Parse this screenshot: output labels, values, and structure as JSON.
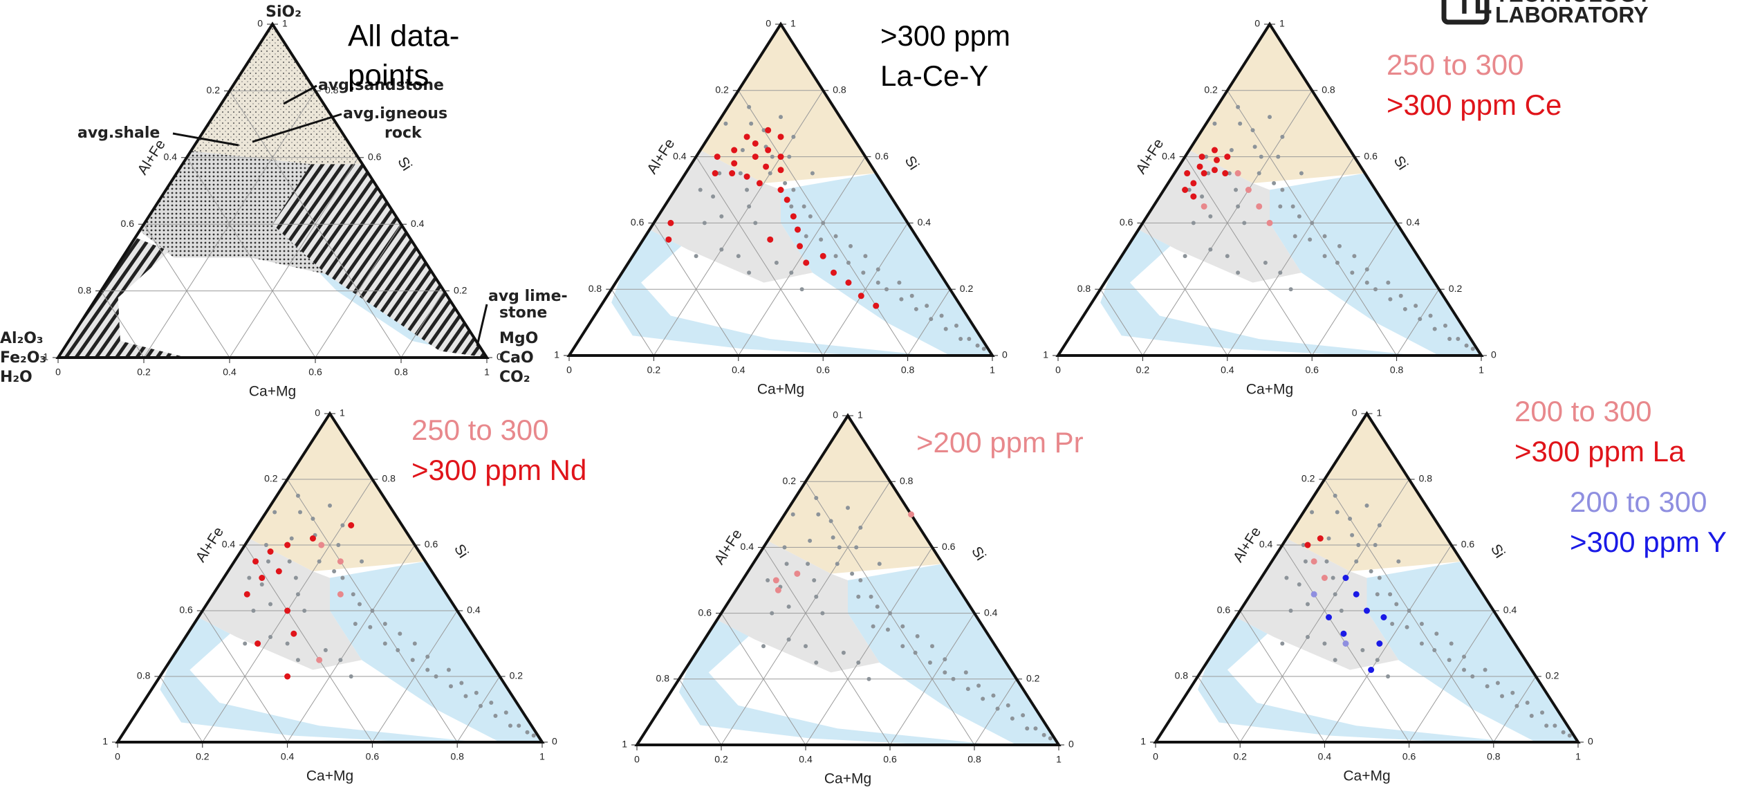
{
  "axes": {
    "ticks": [
      0,
      0.2,
      0.4,
      0.6,
      0.8,
      1
    ],
    "bottom_label": "Ca+Mg",
    "left_label": "Al+Fe",
    "right_label": "Si"
  },
  "background_points": {
    "color": "#8c9399",
    "ca_mg": [
      0.05,
      0.08,
      0.12,
      0.1,
      0.15,
      0.18,
      0.05,
      0.08,
      0.13,
      0.2,
      0.22,
      0.25,
      0.17,
      0.1,
      0.06,
      0.28,
      0.3,
      0.2,
      0.15,
      0.24,
      0.12,
      0.3,
      0.02,
      0.14,
      0.2,
      0.33,
      0.36,
      0.4,
      0.38,
      0.42,
      0.45,
      0.48,
      0.5,
      0.52,
      0.55,
      0.57,
      0.6,
      0.62,
      0.65,
      0.67,
      0.7,
      0.72,
      0.75,
      0.77,
      0.8,
      0.82,
      0.85,
      0.87,
      0.9,
      0.92,
      0.95,
      0.97,
      0.25,
      0.3,
      0.2,
      0.35,
      0.15,
      0.4,
      0.45
    ],
    "si": [
      0.75,
      0.7,
      0.68,
      0.62,
      0.63,
      0.6,
      0.6,
      0.55,
      0.55,
      0.55,
      0.6,
      0.52,
      0.5,
      0.48,
      0.5,
      0.5,
      0.45,
      0.45,
      0.42,
      0.4,
      0.4,
      0.55,
      0.7,
      0.72,
      0.66,
      0.45,
      0.42,
      0.4,
      0.36,
      0.35,
      0.36,
      0.3,
      0.33,
      0.28,
      0.3,
      0.25,
      0.26,
      0.22,
      0.2,
      0.22,
      0.17,
      0.18,
      0.14,
      0.15,
      0.11,
      0.12,
      0.08,
      0.09,
      0.05,
      0.05,
      0.03,
      0.02,
      0.3,
      0.25,
      0.32,
      0.28,
      0.3,
      0.25,
      0.2
    ]
  },
  "reference_diagram": {
    "caption_lines": [
      "All data-",
      "points"
    ],
    "apex": "SiO₂",
    "sandstone": "avg.sandstone",
    "igneous_lines": [
      "avg.igneous",
      "rock"
    ],
    "shale": "avg.shale",
    "limestone_lines": [
      "avg lime-",
      "stone"
    ],
    "right_vertex_lines": [
      "MgO",
      "CaO",
      "CO₂"
    ],
    "left_vertex_lines": [
      "Al₂O₃",
      "Fe₂O₃",
      "H₂O"
    ]
  },
  "logo": {
    "lines": [
      "TECHNOLOGY",
      "LABORATORY"
    ]
  },
  "panels": [
    {
      "legend_text_color": "#000000",
      "note": "La-Ce-Y",
      "legend": [
        {
          "name": ">300 ppm",
          "color": "#e0141a",
          "ca_mg": [
            0.05,
            0.08,
            0.1,
            0.12,
            0.14,
            0.16,
            0.18,
            0.2,
            0.07,
            0.11,
            0.15,
            0.19,
            0.22,
            0.09,
            0.13,
            0.17,
            0.25,
            0.28,
            0.32,
            0.3,
            0.38,
            0.42,
            0.45,
            0.5,
            0.55,
            0.6,
            0.04,
            0.06,
            0.35,
            0.65
          ],
          "si": [
            0.6,
            0.62,
            0.58,
            0.64,
            0.6,
            0.62,
            0.57,
            0.6,
            0.55,
            0.55,
            0.54,
            0.52,
            0.56,
            0.66,
            0.68,
            0.66,
            0.5,
            0.47,
            0.42,
            0.35,
            0.33,
            0.28,
            0.3,
            0.25,
            0.22,
            0.18,
            0.4,
            0.35,
            0.38,
            0.15
          ]
        }
      ]
    },
    {
      "legend": [
        {
          "name": "250 to 300",
          "color": "#e8888c",
          "ca_mg": [
            0.15,
            0.2,
            0.25,
            0.3,
            0.12
          ],
          "si": [
            0.55,
            0.5,
            0.45,
            0.4,
            0.45
          ]
        },
        {
          "name": ">300 ppm Ce",
          "color": "#e0141a",
          "ca_mg": [
            0.04,
            0.05,
            0.06,
            0.07,
            0.08,
            0.09,
            0.06,
            0.1,
            0.05,
            0.12,
            0.03,
            0.08
          ],
          "si": [
            0.6,
            0.57,
            0.62,
            0.55,
            0.59,
            0.56,
            0.52,
            0.6,
            0.5,
            0.55,
            0.55,
            0.48
          ]
        }
      ]
    },
    {
      "legend": [
        {
          "name": "250 to 300",
          "color": "#e8888c",
          "ca_mg": [
            0.18,
            0.25,
            0.3,
            0.35
          ],
          "si": [
            0.6,
            0.55,
            0.45,
            0.25
          ]
        },
        {
          "name": ">300 ppm Nd",
          "color": "#e0141a",
          "ca_mg": [
            0.05,
            0.07,
            0.09,
            0.1,
            0.12,
            0.08,
            0.15,
            0.2,
            0.18,
            0.25,
            0.3,
            0.22
          ],
          "si": [
            0.55,
            0.58,
            0.5,
            0.6,
            0.52,
            0.45,
            0.62,
            0.4,
            0.3,
            0.33,
            0.2,
            0.66
          ]
        }
      ]
    },
    {
      "legend": [
        {
          "name": ">200 ppm Pr",
          "color": "#e8888c",
          "ca_mg": [
            0.08,
            0.1,
            0.12,
            0.3
          ],
          "si": [
            0.5,
            0.47,
            0.52,
            0.7
          ]
        }
      ]
    },
    {
      "legend": [
        {
          "name": "200 to 300",
          "color": "#e8888c",
          "ca_mg": [
            0.1,
            0.15
          ],
          "si": [
            0.55,
            0.5
          ]
        },
        {
          "name": ">300 ppm La",
          "color": "#e0141a",
          "ca_mg": [
            0.06,
            0.08
          ],
          "si": [
            0.6,
            0.62
          ]
        },
        {
          "name": "200 to 300",
          "color": "#8f8fe0",
          "ca_mg": [
            0.15,
            0.3
          ],
          "si": [
            0.45,
            0.3
          ]
        },
        {
          "name": ">300 ppm Y",
          "color": "#1a1ae6",
          "ca_mg": [
            0.2,
            0.25,
            0.3,
            0.35,
            0.28,
            0.38,
            0.4,
            0.22
          ],
          "si": [
            0.5,
            0.45,
            0.4,
            0.38,
            0.33,
            0.3,
            0.22,
            0.38
          ]
        }
      ]
    }
  ]
}
